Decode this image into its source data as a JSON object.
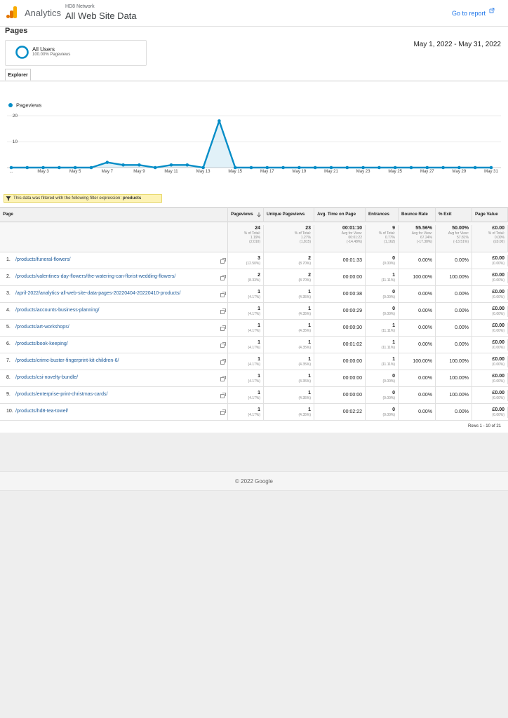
{
  "header": {
    "product": "Analytics",
    "account": "HD8 Network",
    "view": "All Web Site Data",
    "go_to_report": "Go to report"
  },
  "page_title": "Pages",
  "segment": {
    "name": "All Users",
    "detail": "100.00% Pageviews"
  },
  "date_range": "May 1, 2022 - May 31, 2022",
  "tabs": [
    "Explorer"
  ],
  "chart_data": {
    "type": "line",
    "categories": [
      "...",
      null,
      "May 3",
      null,
      "May 5",
      null,
      "May 7",
      null,
      "May 9",
      null,
      "May 11",
      null,
      "May 13",
      null,
      "May 15",
      null,
      "May 17",
      null,
      "May 19",
      null,
      "May 21",
      null,
      "May 23",
      null,
      "May 25",
      null,
      "May 27",
      null,
      "May 29",
      null,
      "May 31"
    ],
    "series": [
      {
        "name": "Pageviews",
        "color": "#058dc7",
        "values": [
          0,
          0,
          0,
          0,
          0,
          0,
          2,
          1,
          1,
          0,
          1,
          1,
          0,
          18,
          0,
          0,
          0,
          0,
          0,
          0,
          0,
          0,
          0,
          0,
          0,
          0,
          0,
          0,
          0,
          0,
          0
        ]
      }
    ],
    "ylim": [
      0,
      20
    ],
    "yticks": [
      10,
      20
    ],
    "grid": true,
    "legend": "top-left"
  },
  "filter": {
    "text": "This data was filtered with the following filter expression:",
    "expression": "products"
  },
  "table": {
    "columns": [
      "Page",
      "Pageviews",
      "Unique Pageviews",
      "Avg. Time on Page",
      "Entrances",
      "Bounce Rate",
      "% Exit",
      "Page Value"
    ],
    "totals": [
      [
        "24",
        "% of Total:",
        "1.19%",
        "(2,010)"
      ],
      [
        "23",
        "% of Total:",
        "1.27%",
        "(1,815)"
      ],
      [
        "00:01:10",
        "Avg for View:",
        "00:01:22",
        "(-14.48%)"
      ],
      [
        "9",
        "% of Total:",
        "0.77%",
        "(1,162)"
      ],
      [
        "55.56%",
        "Avg for View:",
        "67.24%",
        "(-17.38%)"
      ],
      [
        "50.00%",
        "Avg for View:",
        "57.81%",
        "(-13.51%)"
      ],
      [
        "£0.00",
        "% of Total:",
        "0.00%",
        "(£0.00)"
      ]
    ],
    "rows": [
      {
        "rank": "1.",
        "page": "/products/funeral-flowers/",
        "cells": [
          [
            "3",
            "(12.50%)"
          ],
          [
            "2",
            "(8.70%)"
          ],
          [
            "00:01:33"
          ],
          [
            "0",
            "(0.00%)"
          ],
          [
            "0.00%"
          ],
          [
            "0.00%"
          ],
          [
            "£0.00",
            "(0.00%)"
          ]
        ]
      },
      {
        "rank": "2.",
        "page": "/products/valentines-day-flowers/the-watering-can-florist-wedding-flowers/",
        "cells": [
          [
            "2",
            "(8.33%)"
          ],
          [
            "2",
            "(8.70%)"
          ],
          [
            "00:00:00"
          ],
          [
            "1",
            "(11.11%)"
          ],
          [
            "100.00%"
          ],
          [
            "100.00%"
          ],
          [
            "£0.00",
            "(0.00%)"
          ]
        ]
      },
      {
        "rank": "3.",
        "page": "/april-2022/analytics-all-web-site-data-pages-20220404-20220410-products/",
        "cells": [
          [
            "1",
            "(4.17%)"
          ],
          [
            "1",
            "(4.35%)"
          ],
          [
            "00:00:38"
          ],
          [
            "0",
            "(0.00%)"
          ],
          [
            "0.00%"
          ],
          [
            "0.00%"
          ],
          [
            "£0.00",
            "(0.00%)"
          ]
        ]
      },
      {
        "rank": "4.",
        "page": "/products/accounts-business-planning/",
        "cells": [
          [
            "1",
            "(4.17%)"
          ],
          [
            "1",
            "(4.35%)"
          ],
          [
            "00:00:29"
          ],
          [
            "0",
            "(0.00%)"
          ],
          [
            "0.00%"
          ],
          [
            "0.00%"
          ],
          [
            "£0.00",
            "(0.00%)"
          ]
        ]
      },
      {
        "rank": "5.",
        "page": "/products/art-workshops/",
        "cells": [
          [
            "1",
            "(4.17%)"
          ],
          [
            "1",
            "(4.35%)"
          ],
          [
            "00:00:30"
          ],
          [
            "1",
            "(11.11%)"
          ],
          [
            "0.00%"
          ],
          [
            "0.00%"
          ],
          [
            "£0.00",
            "(0.00%)"
          ]
        ]
      },
      {
        "rank": "6.",
        "page": "/products/book-keeping/",
        "cells": [
          [
            "1",
            "(4.17%)"
          ],
          [
            "1",
            "(4.35%)"
          ],
          [
            "00:01:02"
          ],
          [
            "1",
            "(11.11%)"
          ],
          [
            "0.00%"
          ],
          [
            "0.00%"
          ],
          [
            "£0.00",
            "(0.00%)"
          ]
        ]
      },
      {
        "rank": "7.",
        "page": "/products/crime-buster-fingerprint-kit-children-6/",
        "cells": [
          [
            "1",
            "(4.17%)"
          ],
          [
            "1",
            "(4.35%)"
          ],
          [
            "00:00:00"
          ],
          [
            "1",
            "(11.11%)"
          ],
          [
            "100.00%"
          ],
          [
            "100.00%"
          ],
          [
            "£0.00",
            "(0.00%)"
          ]
        ]
      },
      {
        "rank": "8.",
        "page": "/products/csi-novelty-bundle/",
        "cells": [
          [
            "1",
            "(4.17%)"
          ],
          [
            "1",
            "(4.35%)"
          ],
          [
            "00:00:00"
          ],
          [
            "0",
            "(0.00%)"
          ],
          [
            "0.00%"
          ],
          [
            "100.00%"
          ],
          [
            "£0.00",
            "(0.00%)"
          ]
        ]
      },
      {
        "rank": "9.",
        "page": "/products/enterprise-print-christmas-cards/",
        "cells": [
          [
            "1",
            "(4.17%)"
          ],
          [
            "1",
            "(4.35%)"
          ],
          [
            "00:00:00"
          ],
          [
            "0",
            "(0.00%)"
          ],
          [
            "0.00%"
          ],
          [
            "100.00%"
          ],
          [
            "£0.00",
            "(0.00%)"
          ]
        ]
      },
      {
        "rank": "10.",
        "page": "/products/hd8-tea-towel/",
        "cells": [
          [
            "1",
            "(4.17%)"
          ],
          [
            "1",
            "(4.35%)"
          ],
          [
            "00:02:22"
          ],
          [
            "0",
            "(0.00%)"
          ],
          [
            "0.00%"
          ],
          [
            "0.00%"
          ],
          [
            "£0.00",
            "(0.00%)"
          ]
        ]
      }
    ]
  },
  "pagination": "Rows 1 - 10 of 21",
  "footer": "© 2022 Google"
}
